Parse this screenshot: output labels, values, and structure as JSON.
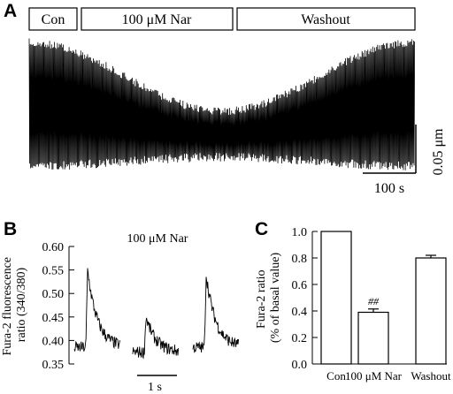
{
  "panel_letters": {
    "a": "A",
    "b": "B",
    "c": "C"
  },
  "chart_data": [
    {
      "panel": "A",
      "type": "line",
      "description_labels": [
        "Con",
        "100 μM Nar",
        "Washout"
      ],
      "scale_bar_x": "100 s",
      "scale_bar_y": "0.05 μm"
    },
    {
      "panel": "B",
      "type": "line",
      "title": "100 μM Nar",
      "ylabel": "Fura-2 fluorescence ratio (340/380)",
      "ylabel_lines": [
        "Fura-2 fluorescence",
        "ratio (340/380)"
      ],
      "ylim": [
        0.35,
        0.6
      ],
      "yticks": [
        "0.60",
        "0.55",
        "0.50",
        "0.45",
        "0.40",
        "0.35"
      ],
      "scale_bar_x": "1 s",
      "transients": [
        {
          "baseline": 0.385,
          "peak": 0.55
        },
        {
          "baseline": 0.375,
          "peak": 0.45
        },
        {
          "baseline": 0.385,
          "peak": 0.54
        }
      ]
    },
    {
      "panel": "C",
      "type": "bar",
      "categories": [
        "Con",
        "100 μM Nar",
        "Washout"
      ],
      "values": [
        1.0,
        0.39,
        0.8
      ],
      "errors": [
        0,
        0.025,
        0.02
      ],
      "annotations": [
        "",
        "##",
        ""
      ],
      "ylabel": "Fura-2 ratio (% of basal value)",
      "ylabel_lines": [
        "Fura-2 ratio",
        "(% of basal value)"
      ],
      "ylim": [
        0.0,
        1.0
      ],
      "yticks": [
        "1.0",
        "0.8",
        "0.6",
        "0.4",
        "0.2",
        "0.0"
      ]
    }
  ]
}
